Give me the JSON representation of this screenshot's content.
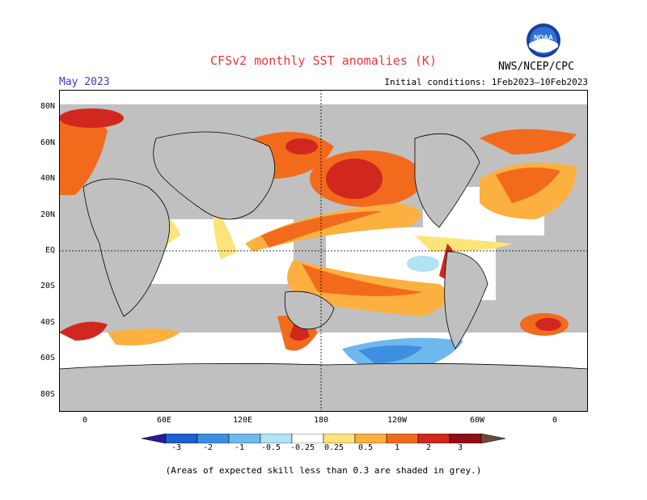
{
  "header": {
    "title": "CFSv2 monthly SST anomalies (K)",
    "month": "May 2023",
    "initial_conditions": "Initial conditions: 1Feb2023–10Feb2023",
    "agency": "NWS/NCEP/CPC",
    "logo_text": "NOAA"
  },
  "map": {
    "lat_labels": [
      "80N",
      "60N",
      "40N",
      "20N",
      "EQ",
      "20S",
      "40S",
      "60S",
      "80S"
    ],
    "lon_labels": [
      "0",
      "60E",
      "120E",
      "180",
      "120W",
      "60W",
      "0"
    ],
    "colors": {
      "land": "#c0c0c0",
      "low_skill": "#c0c0c0",
      "neutral": "#ffffff"
    }
  },
  "colorbar": {
    "labels": [
      "-3",
      "-2",
      "-1",
      "-0.5",
      "-0.25",
      "0.25",
      "0.5",
      "1",
      "2",
      "3"
    ],
    "colors": [
      "#2a1a9e",
      "#1f5fcf",
      "#3f8fe0",
      "#6fb8ee",
      "#b2e2f6",
      "#ffffff",
      "#fde37a",
      "#fbb040",
      "#f26b1d",
      "#d0281e",
      "#8f0f14",
      "#6b4a3a"
    ]
  },
  "footer": {
    "note": "(Areas of expected skill less than 0.3 are shaded in grey.)"
  }
}
